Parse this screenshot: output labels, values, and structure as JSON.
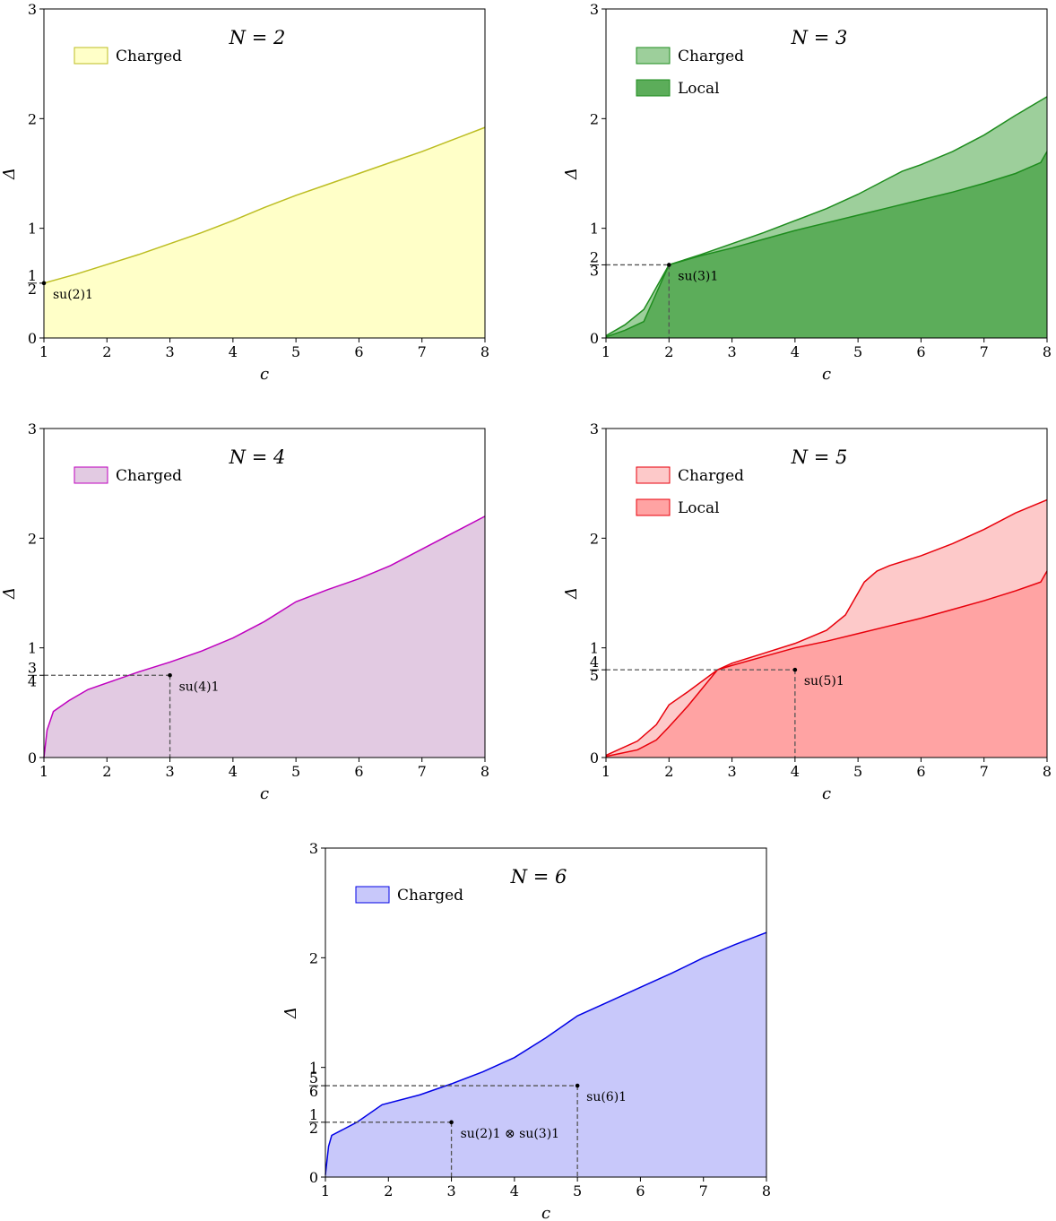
{
  "chart_data": [
    {
      "type": "area",
      "title": "N = 2",
      "xlabel": "c",
      "ylabel": "Δ",
      "xlim": [
        1,
        8
      ],
      "ylim": [
        0,
        3
      ],
      "xticks": [
        "1",
        "2",
        "3",
        "4",
        "5",
        "6",
        "7",
        "8"
      ],
      "yticks": [
        {
          "value": 0,
          "label": "0"
        },
        {
          "value": 0.5,
          "label": "1/2"
        },
        {
          "value": 1,
          "label": "1"
        },
        {
          "value": 2,
          "label": "2"
        },
        {
          "value": 3,
          "label": "3"
        }
      ],
      "legend_position": "top-left",
      "series": [
        {
          "name": "Charged",
          "line_color": "#bcbd22",
          "fill_color": "#ffffc8",
          "x": [
            1,
            1.5,
            2,
            2.5,
            3,
            3.5,
            4,
            4.5,
            5,
            5.5,
            6,
            6.5,
            7,
            7.5,
            8
          ],
          "y": [
            0.5,
            0.58,
            0.67,
            0.76,
            0.86,
            0.96,
            1.07,
            1.19,
            1.3,
            1.4,
            1.5,
            1.6,
            1.7,
            1.81,
            1.92
          ]
        }
      ],
      "annotations": [
        {
          "label": "su(2)1",
          "x": 1,
          "y": 0.5,
          "guides": false
        }
      ]
    },
    {
      "type": "area",
      "title": "N = 3",
      "xlabel": "c",
      "ylabel": "Δ",
      "xlim": [
        1,
        8
      ],
      "ylim": [
        0,
        3
      ],
      "xticks": [
        "1",
        "2",
        "3",
        "4",
        "5",
        "6",
        "7",
        "8"
      ],
      "yticks": [
        {
          "value": 0,
          "label": "0"
        },
        {
          "value": 0.6667,
          "label": "2/3"
        },
        {
          "value": 1,
          "label": "1"
        },
        {
          "value": 2,
          "label": "2"
        },
        {
          "value": 3,
          "label": "3"
        }
      ],
      "legend_position": "top-left",
      "series": [
        {
          "name": "Charged",
          "line_color": "#1e8c1e",
          "fill_color": "#9dcf9b",
          "x": [
            1,
            1.3,
            1.6,
            1.7,
            2,
            2.5,
            3,
            3.5,
            4,
            4.5,
            5,
            5.5,
            5.7,
            6,
            6.5,
            7,
            7.5,
            8
          ],
          "y": [
            0.02,
            0.12,
            0.26,
            0.36,
            0.667,
            0.76,
            0.86,
            0.96,
            1.07,
            1.18,
            1.31,
            1.46,
            1.52,
            1.58,
            1.7,
            1.85,
            2.03,
            2.2
          ]
        },
        {
          "name": "Local",
          "line_color": "#1e8c1e",
          "fill_color": "#5cad5a",
          "x": [
            1,
            1.3,
            1.6,
            1.7,
            2,
            2.5,
            3,
            3.5,
            4,
            4.5,
            5,
            5.5,
            6,
            6.5,
            7,
            7.5,
            7.9,
            8
          ],
          "y": [
            0.01,
            0.07,
            0.15,
            0.28,
            0.667,
            0.75,
            0.82,
            0.9,
            0.98,
            1.05,
            1.12,
            1.19,
            1.26,
            1.33,
            1.41,
            1.5,
            1.6,
            1.7
          ]
        }
      ],
      "annotations": [
        {
          "label": "su(3)1",
          "x": 2,
          "y": 0.6667,
          "guides": true
        }
      ]
    },
    {
      "type": "area",
      "title": "N = 4",
      "xlabel": "c",
      "ylabel": "Δ",
      "xlim": [
        1,
        8
      ],
      "ylim": [
        0,
        3
      ],
      "xticks": [
        "1",
        "2",
        "3",
        "4",
        "5",
        "6",
        "7",
        "8"
      ],
      "yticks": [
        {
          "value": 0,
          "label": "0"
        },
        {
          "value": 0.75,
          "label": "3/4"
        },
        {
          "value": 1,
          "label": "1"
        },
        {
          "value": 2,
          "label": "2"
        },
        {
          "value": 3,
          "label": "3"
        }
      ],
      "legend_position": "top-left",
      "series": [
        {
          "name": "Charged",
          "line_color": "#bf00bf",
          "fill_color": "#e2cae2",
          "x": [
            1,
            1.05,
            1.15,
            1.4,
            1.7,
            2,
            2.5,
            3,
            3.5,
            4,
            4.5,
            5,
            5.5,
            6,
            6.5,
            7,
            7.5,
            8
          ],
          "y": [
            0.0,
            0.25,
            0.42,
            0.52,
            0.62,
            0.68,
            0.78,
            0.87,
            0.97,
            1.09,
            1.24,
            1.42,
            1.53,
            1.63,
            1.75,
            1.9,
            2.05,
            2.2
          ]
        }
      ],
      "annotations": [
        {
          "label": "su(4)1",
          "x": 3,
          "y": 0.75,
          "guides": true
        }
      ]
    },
    {
      "type": "area",
      "title": "N = 5",
      "xlabel": "c",
      "ylabel": "Δ",
      "xlim": [
        1,
        8
      ],
      "ylim": [
        0,
        3
      ],
      "xticks": [
        "1",
        "2",
        "3",
        "4",
        "5",
        "6",
        "7",
        "8"
      ],
      "yticks": [
        {
          "value": 0,
          "label": "0"
        },
        {
          "value": 0.8,
          "label": "4/5"
        },
        {
          "value": 1,
          "label": "1"
        },
        {
          "value": 2,
          "label": "2"
        },
        {
          "value": 3,
          "label": "3"
        }
      ],
      "legend_position": "top-left",
      "series": [
        {
          "name": "Charged",
          "line_color": "#e8000b",
          "fill_color": "#fdc9c9",
          "x": [
            1,
            1.5,
            1.8,
            2,
            2.3,
            2.77,
            3,
            3.5,
            4,
            4.5,
            4.8,
            5.1,
            5.3,
            5.5,
            6,
            6.5,
            7,
            7.5,
            8
          ],
          "y": [
            0.02,
            0.15,
            0.3,
            0.48,
            0.6,
            0.8,
            0.86,
            0.95,
            1.04,
            1.16,
            1.3,
            1.6,
            1.7,
            1.75,
            1.84,
            1.95,
            2.08,
            2.23,
            2.35
          ]
        },
        {
          "name": "Local",
          "line_color": "#e8000b",
          "fill_color": "#ffa3a3",
          "x": [
            1,
            1.5,
            1.8,
            2,
            2.3,
            2.77,
            3,
            3.5,
            4,
            4.5,
            5,
            5.5,
            6,
            6.5,
            7,
            7.5,
            7.9,
            8
          ],
          "y": [
            0.01,
            0.07,
            0.16,
            0.28,
            0.47,
            0.8,
            0.84,
            0.92,
            1.0,
            1.06,
            1.13,
            1.2,
            1.27,
            1.35,
            1.43,
            1.52,
            1.6,
            1.7
          ]
        }
      ],
      "annotations": [
        {
          "label": "su(5)1",
          "x": 4,
          "y": 0.8,
          "guides": true
        }
      ]
    },
    {
      "type": "area",
      "title": "N = 6",
      "xlabel": "c",
      "ylabel": "Δ",
      "xlim": [
        1,
        8
      ],
      "ylim": [
        0,
        3
      ],
      "xticks": [
        "1",
        "2",
        "3",
        "4",
        "5",
        "6",
        "7",
        "8"
      ],
      "yticks": [
        {
          "value": 0,
          "label": "0"
        },
        {
          "value": 0.5,
          "label": "1/2"
        },
        {
          "value": 0.8333,
          "label": "5/6"
        },
        {
          "value": 1,
          "label": "1"
        },
        {
          "value": 2,
          "label": "2"
        },
        {
          "value": 3,
          "label": "3"
        }
      ],
      "legend_position": "top-left",
      "series": [
        {
          "name": "Charged",
          "line_color": "#0000e6",
          "fill_color": "#c8c8fa",
          "x": [
            1,
            1.05,
            1.1,
            1.5,
            1.9,
            2.5,
            3,
            3.5,
            4,
            4.5,
            5,
            5.5,
            6,
            6.5,
            7,
            7.5,
            8
          ],
          "y": [
            0.02,
            0.28,
            0.38,
            0.5,
            0.66,
            0.75,
            0.85,
            0.96,
            1.09,
            1.27,
            1.47,
            1.6,
            1.73,
            1.86,
            2.0,
            2.12,
            2.23
          ]
        }
      ],
      "annotations": [
        {
          "label": "su(2)1 ⊗ su(3)1",
          "x": 3,
          "y": 0.5,
          "guides": true
        },
        {
          "label": "su(6)1",
          "x": 5,
          "y": 0.8333,
          "guides": true
        }
      ]
    }
  ]
}
